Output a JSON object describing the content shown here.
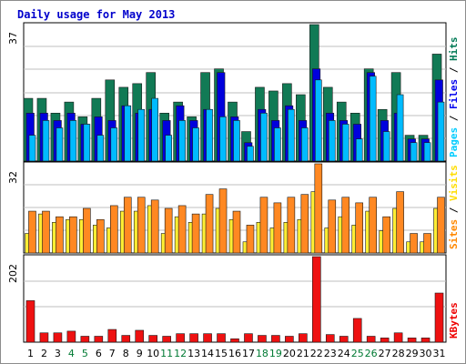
{
  "chart_data": {
    "type": "bar",
    "title": "Daily usage for May 2013",
    "days": [
      "1",
      "2",
      "3",
      "4",
      "5",
      "6",
      "7",
      "8",
      "9",
      "10",
      "11",
      "12",
      "13",
      "14",
      "15",
      "16",
      "17",
      "18",
      "19",
      "20",
      "21",
      "22",
      "23",
      "24",
      "25",
      "26",
      "27",
      "28",
      "29",
      "30",
      "31"
    ],
    "weekend_days": [
      "4",
      "5",
      "11",
      "12",
      "18",
      "19",
      "25",
      "26"
    ],
    "panels": [
      {
        "id": "hits-files-pages",
        "axis_max_label": "37",
        "ymax": 37,
        "right_labels": [
          {
            "text": "Pages",
            "color": "#00ccff"
          },
          {
            "text": " / ",
            "color": "#000000"
          },
          {
            "text": "Files",
            "color": "#0000ee"
          },
          {
            "text": " / ",
            "color": "#000000"
          },
          {
            "text": "Hits",
            "color": "#007a55"
          }
        ],
        "series": [
          {
            "name": "Hits",
            "color": "#117a55",
            "values": [
              17,
              17,
              13,
              16,
              12,
              17,
              22,
              20,
              21,
              24,
              13,
              16,
              12,
              24,
              25,
              16,
              8,
              20,
              19,
              21,
              18,
              37,
              20,
              16,
              13,
              25,
              14,
              24,
              7,
              7,
              29
            ]
          },
          {
            "name": "Files",
            "color": "#0000dd",
            "values": [
              13,
              13,
              11,
              13,
              10,
              12,
              11,
              15,
              13,
              14,
              11,
              15,
              11,
              14,
              24,
              12,
              5,
              14,
              11,
              15,
              11,
              25,
              13,
              11,
              10,
              24,
              11,
              13,
              6,
              6,
              22
            ]
          },
          {
            "name": "Pages",
            "color": "#00bbff",
            "values": [
              7,
              11,
              9,
              11,
              10,
              7,
              9,
              15,
              14,
              17,
              7,
              11,
              9,
              14,
              12,
              11,
              4,
              13,
              9,
              14,
              9,
              22,
              11,
              10,
              6,
              23,
              8,
              18,
              5,
              5,
              16
            ]
          }
        ]
      },
      {
        "id": "visits-sites",
        "axis_max_label": "32",
        "ymax": 32,
        "right_labels": [
          {
            "text": "Sites",
            "color": "#ff8800"
          },
          {
            "text": " / ",
            "color": "#000000"
          },
          {
            "text": "Visits",
            "color": "#ffdd00"
          }
        ],
        "series": [
          {
            "name": "Visits",
            "color": "#ffee33",
            "values": [
              7,
              14,
              11,
              12,
              12,
              10,
              9,
              15,
              15,
              17,
              7,
              13,
              11,
              14,
              16,
              12,
              4,
              11,
              9,
              11,
              12,
              22,
              9,
              13,
              10,
              15,
              8,
              16,
              4,
              4,
              16
            ]
          },
          {
            "name": "Sites",
            "color": "#ff8822",
            "values": [
              15,
              15,
              13,
              13,
              16,
              12,
              17,
              20,
              20,
              19,
              16,
              17,
              14,
              21,
              23,
              15,
              10,
              20,
              18,
              20,
              21,
              32,
              19,
              20,
              18,
              20,
              13,
              22,
              7,
              7,
              20
            ]
          }
        ]
      },
      {
        "id": "kbytes",
        "axis_max_label": "202",
        "ymax": 202,
        "right_labels": [
          {
            "text": "KBytes",
            "color": "#ee0000"
          }
        ],
        "series": [
          {
            "name": "KBytes",
            "color": "#ee1111",
            "values": [
              98,
              22,
              22,
              26,
              14,
              14,
              30,
              16,
              28,
              16,
              14,
              20,
              20,
              20,
              20,
              8,
              20,
              16,
              16,
              14,
              20,
              202,
              18,
              14,
              56,
              14,
              10,
              22,
              10,
              10,
              116
            ]
          }
        ]
      }
    ]
  }
}
